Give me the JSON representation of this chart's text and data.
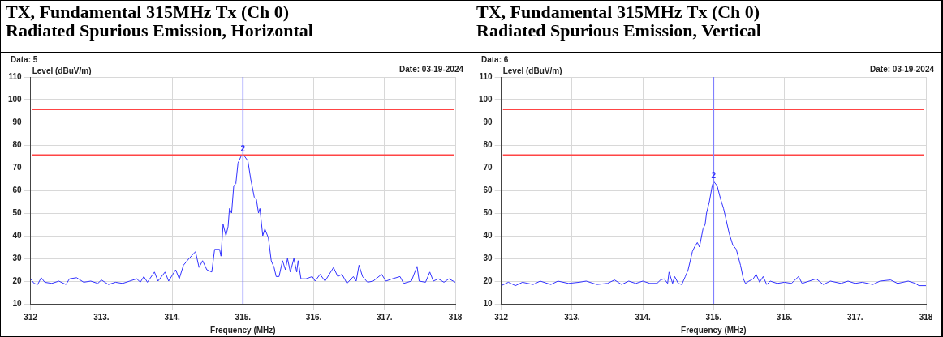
{
  "chart_data": [
    {
      "type": "line",
      "title": "TX, Fundamental 315MHz Tx (Ch 0)",
      "subtitle": "Radiated Spurious Emission, Horizontal",
      "xlabel": "Frequency (MHz)",
      "ylabel": "Level (dBuV/m)",
      "annotations": [
        "Data: 5",
        "Date: 03-19-2024",
        {
          "text": "2",
          "x": 315.0,
          "y": 75.6
        }
      ],
      "x": [
        312.0,
        312.05,
        312.1,
        312.15,
        312.2,
        312.3,
        312.4,
        312.5,
        312.55,
        312.65,
        312.75,
        312.85,
        312.95,
        313.0,
        313.1,
        313.2,
        313.3,
        313.4,
        313.5,
        313.55,
        313.6,
        313.65,
        313.75,
        313.8,
        313.9,
        313.95,
        314.05,
        314.1,
        314.16,
        314.24,
        314.33,
        314.38,
        314.43,
        314.49,
        314.56,
        314.6,
        314.67,
        314.69,
        314.72,
        314.76,
        314.79,
        314.81,
        314.84,
        314.87,
        314.9,
        314.93,
        314.98,
        315.01,
        315.07,
        315.11,
        315.16,
        315.19,
        315.22,
        315.24,
        315.28,
        315.31,
        315.36,
        315.4,
        315.44,
        315.47,
        315.51,
        315.56,
        315.6,
        315.63,
        315.67,
        315.72,
        315.76,
        315.78,
        315.82,
        315.89,
        315.98,
        316.02,
        316.09,
        316.16,
        316.28,
        316.34,
        316.4,
        316.47,
        316.56,
        316.6,
        316.64,
        316.69,
        316.76,
        316.84,
        316.96,
        317.02,
        317.11,
        317.22,
        317.27,
        317.38,
        317.46,
        317.49,
        317.58,
        317.64,
        317.69,
        317.76,
        317.84,
        317.91,
        318.0
      ],
      "series": [
        {
          "color": "#3333ff",
          "values": [
            21,
            19,
            18.5,
            21.5,
            19.5,
            19,
            20,
            18.5,
            21,
            21.5,
            19.5,
            20,
            19,
            20.5,
            18.5,
            19.5,
            19,
            20,
            21,
            19.5,
            22,
            19.5,
            24,
            20,
            24,
            20,
            25,
            21,
            27,
            30,
            33,
            26,
            29,
            25,
            24,
            34,
            34,
            31,
            45,
            40,
            44,
            52,
            50,
            62,
            63,
            72,
            75.5,
            75.6,
            73,
            65,
            57,
            56,
            50,
            52,
            40,
            43,
            39,
            29,
            26,
            22,
            22,
            29,
            25,
            30,
            24,
            30,
            24,
            29,
            21,
            21,
            22,
            20,
            23,
            20,
            26,
            22,
            23,
            19,
            22,
            20,
            27,
            22,
            19.5,
            20,
            23,
            20,
            21,
            22,
            19,
            20,
            26.5,
            20,
            19.5,
            24,
            20,
            21,
            19.5,
            21,
            19.5
          ]
        }
      ],
      "xlim": [
        312,
        318
      ],
      "xticks": [
        {
          "value": 312,
          "label": "312"
        },
        {
          "value": 313,
          "label": "313."
        },
        {
          "value": 314,
          "label": "314."
        },
        {
          "value": 315,
          "label": "315."
        },
        {
          "value": 316,
          "label": "316."
        },
        {
          "value": 317,
          "label": "317."
        },
        {
          "value": 318,
          "label": "318"
        }
      ],
      "ylim": [
        10,
        110
      ],
      "yticks": [
        10,
        20,
        30,
        40,
        50,
        60,
        70,
        80,
        90,
        100,
        110
      ],
      "ref_lines": [
        {
          "axis": "y",
          "value": 95.6,
          "color": "#ff4444"
        },
        {
          "axis": "y",
          "value": 75.6,
          "color": "#ff4444"
        },
        {
          "axis": "x",
          "value": 315.0,
          "color": "#8080ff"
        }
      ],
      "grid": true,
      "legend": false,
      "marker": "none",
      "line_style": "solid"
    },
    {
      "type": "line",
      "title": "TX, Fundamental 315MHz Tx (Ch 0)",
      "subtitle": "Radiated Spurious Emission, Vertical",
      "xlabel": "Frequency (MHz)",
      "ylabel": "Level (dBuV/m)",
      "annotations": [
        "Data: 6",
        "Date: 03-19-2024",
        {
          "text": "2",
          "x": 315.0,
          "y": 64
        }
      ],
      "x": [
        312.0,
        312.1,
        312.2,
        312.3,
        312.45,
        312.55,
        312.7,
        312.8,
        312.95,
        313.1,
        313.2,
        313.35,
        313.5,
        313.6,
        313.7,
        313.8,
        313.9,
        314.0,
        314.1,
        314.2,
        314.25,
        314.3,
        314.35,
        314.37,
        314.42,
        314.45,
        314.5,
        314.55,
        314.6,
        314.64,
        314.7,
        314.73,
        314.77,
        314.8,
        314.85,
        314.88,
        314.9,
        314.94,
        314.98,
        315.0,
        315.05,
        315.1,
        315.14,
        315.17,
        315.22,
        315.27,
        315.32,
        315.38,
        315.42,
        315.45,
        315.5,
        315.56,
        315.6,
        315.65,
        315.7,
        315.75,
        315.8,
        315.9,
        316.0,
        316.1,
        316.2,
        316.25,
        316.35,
        316.45,
        316.55,
        316.65,
        316.8,
        316.9,
        317.0,
        317.1,
        317.25,
        317.35,
        317.5,
        317.6,
        317.75,
        317.85,
        317.9,
        318.0
      ],
      "series": [
        {
          "color": "#3333ff",
          "values": [
            18,
            19.5,
            18,
            19.5,
            18.5,
            20,
            18.5,
            20,
            19,
            19.5,
            20,
            18.5,
            19,
            20.5,
            18.5,
            20,
            19,
            20,
            19,
            19,
            20.5,
            21,
            19,
            24,
            19,
            22,
            19,
            18.5,
            22,
            25,
            33,
            35,
            37,
            35,
            43,
            45,
            50,
            55,
            62,
            64,
            62,
            56,
            52,
            48,
            41,
            36,
            34,
            27,
            21,
            19,
            20,
            21,
            23,
            19.5,
            22,
            18.5,
            20,
            19,
            19.5,
            19,
            22,
            19,
            20,
            21,
            18.5,
            20,
            19,
            20,
            19,
            19.5,
            18.5,
            20,
            20.5,
            19,
            20,
            19,
            18,
            18
          ]
        }
      ],
      "xlim": [
        312,
        318
      ],
      "xticks": [
        {
          "value": 312,
          "label": "312"
        },
        {
          "value": 313,
          "label": "313."
        },
        {
          "value": 314,
          "label": "314."
        },
        {
          "value": 315,
          "label": "315."
        },
        {
          "value": 316,
          "label": "316."
        },
        {
          "value": 317,
          "label": "317."
        },
        {
          "value": 318,
          "label": "318"
        }
      ],
      "ylim": [
        10,
        110
      ],
      "yticks": [
        10,
        20,
        30,
        40,
        50,
        60,
        70,
        80,
        90,
        100,
        110
      ],
      "ref_lines": [
        {
          "axis": "y",
          "value": 95.6,
          "color": "#ff4444"
        },
        {
          "axis": "y",
          "value": 75.6,
          "color": "#ff4444"
        },
        {
          "axis": "x",
          "value": 315.0,
          "color": "#8080ff"
        }
      ],
      "grid": true,
      "legend": false,
      "marker": "none",
      "line_style": "solid"
    }
  ]
}
